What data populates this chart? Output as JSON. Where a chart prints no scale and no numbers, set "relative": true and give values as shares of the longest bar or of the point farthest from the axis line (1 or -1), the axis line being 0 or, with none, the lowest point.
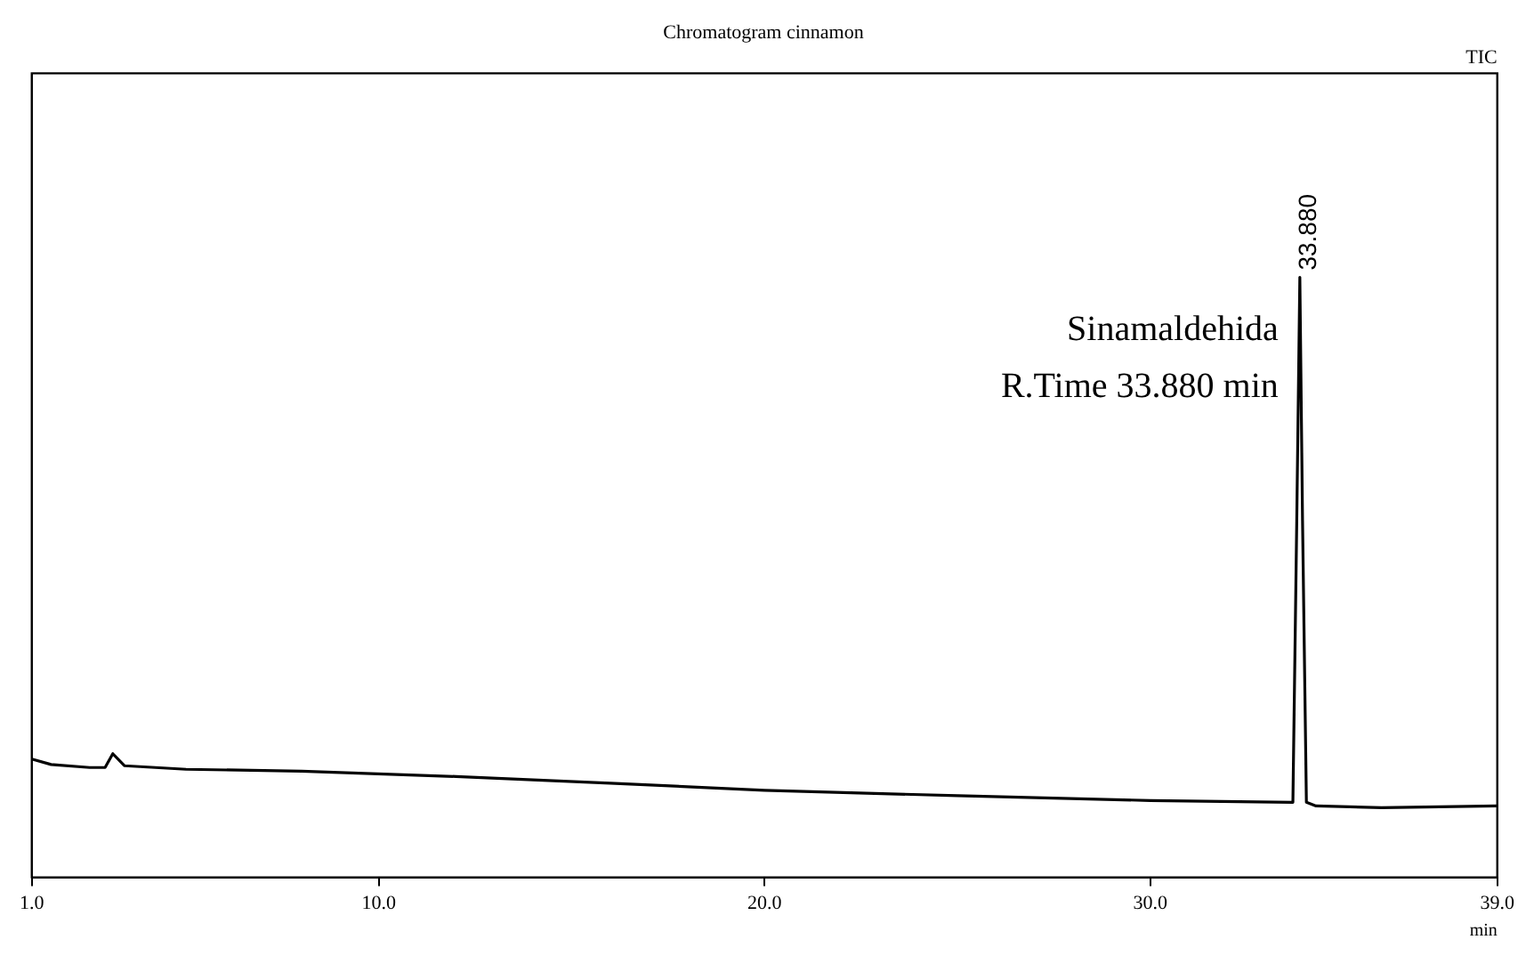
{
  "chart_data": {
    "type": "line",
    "title": "Chromatogram cinnamon",
    "xlabel": "min",
    "relative": true,
    "x": [
      1.0,
      1.5,
      2.5,
      2.9,
      3.1,
      3.4,
      5,
      8,
      12,
      16,
      20,
      25,
      30,
      33.7,
      33.8,
      33.88,
      33.95,
      34.05,
      34.3,
      36,
      39
    ],
    "series": [
      {
        "color": "#000000",
        "values": [
          0.197,
          0.188,
          0.183,
          0.183,
          0.206,
          0.186,
          0.18,
          0.177,
          0.168,
          0.157,
          0.145,
          0.136,
          0.128,
          0.125,
          0.594,
          1,
          0.594,
          0.125,
          0.119,
          0.116,
          0.119
        ]
      }
    ],
    "xlim": [
      1,
      39
    ],
    "xticks": [
      {
        "value": 1,
        "label": "1.0"
      },
      {
        "value": 10,
        "label": "10.0"
      },
      {
        "value": 20,
        "label": "20.0"
      },
      {
        "value": 30,
        "label": "30.0"
      },
      {
        "value": 39,
        "label": "39.0"
      }
    ],
    "annotations": [
      "TIC",
      "33.880",
      "Sinamaldehida",
      "R.Time 33.880 min"
    ],
    "legend": false,
    "grid": false
  }
}
